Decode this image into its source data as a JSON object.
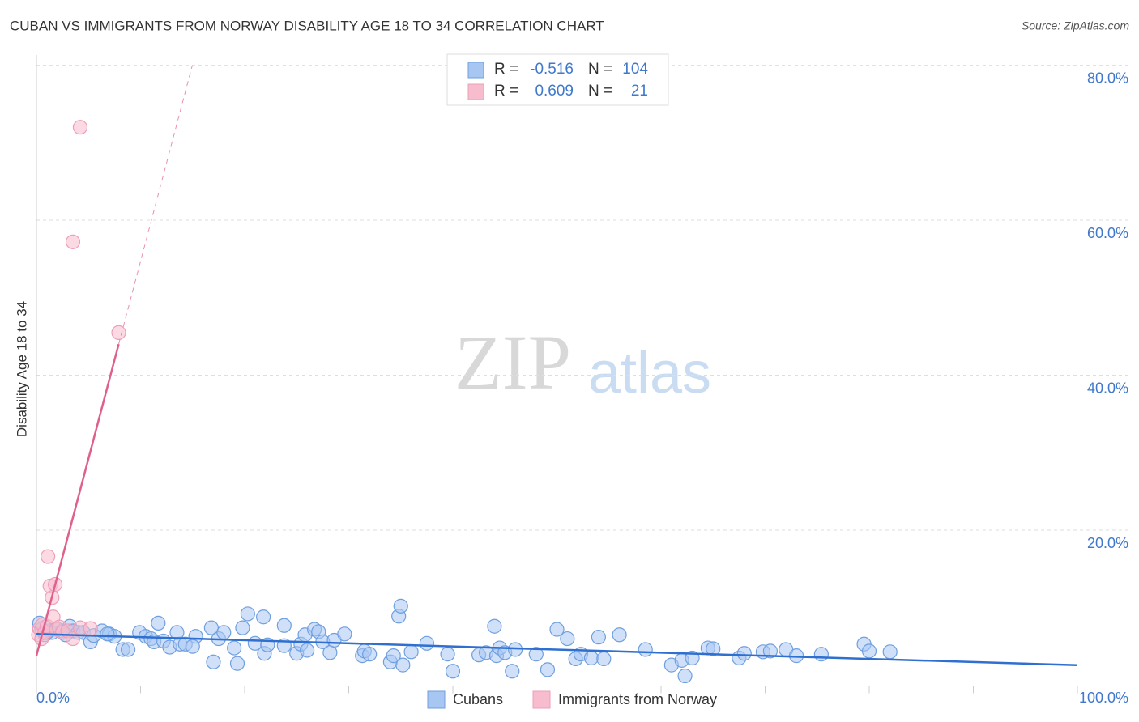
{
  "chart_data": {
    "type": "scatter",
    "title": "CUBAN VS IMMIGRANTS FROM NORWAY DISABILITY AGE 18 TO 34 CORRELATION CHART",
    "source": "Source: ZipAtlas.com",
    "watermark": {
      "left": "ZIP",
      "right": "atlas"
    },
    "y_label": "Disability Age 18 to 34",
    "xlim": [
      0,
      100
    ],
    "ylim": [
      0,
      81
    ],
    "xticks": [
      {
        "value": 0,
        "label": "0.0%"
      },
      {
        "value": 100,
        "label": "100.0%"
      }
    ],
    "xminor_ticks": [
      10,
      20,
      30,
      40,
      50,
      60,
      70,
      80,
      90
    ],
    "yticks": [
      {
        "value": 20,
        "label": "20.0%"
      },
      {
        "value": 40,
        "label": "40.0%"
      },
      {
        "value": 60,
        "label": "60.0%"
      },
      {
        "value": 80,
        "label": "80.0%"
      }
    ],
    "grid": true,
    "stat_labels": {
      "r": "R =",
      "n": "N ="
    },
    "series": [
      {
        "name": "Cubans",
        "color": "#6f9fdf",
        "fill": "#a8c6f2",
        "line_color": "#2f6fcf",
        "r": -0.516,
        "n": 104,
        "x": [
          0.3,
          0.5,
          0.8,
          1.2,
          1.5,
          2.0,
          2.5,
          3.2,
          3.5,
          4.0,
          4.5,
          5.2,
          5.5,
          6.3,
          7.0,
          7.5,
          8.3,
          8.8,
          9.9,
          10.5,
          11.0,
          11.3,
          11.7,
          12.2,
          12.8,
          13.8,
          13.5,
          14.3,
          15.3,
          16.8,
          17.0,
          17.5,
          18.0,
          19.0,
          19.3,
          19.8,
          20.3,
          21.0,
          21.8,
          21.9,
          22.2,
          23.8,
          23.8,
          25.0,
          25.4,
          25.8,
          26.7,
          27.1,
          27.5,
          28.2,
          28.6,
          29.6,
          31.3,
          31.5,
          32.0,
          34.0,
          34.3,
          34.8,
          35.0,
          35.2,
          36.0,
          37.5,
          40.0,
          42.5,
          43.2,
          44.0,
          44.2,
          44.5,
          45.0,
          45.7,
          46.0,
          48.0,
          49.1,
          50.0,
          51.0,
          51.8,
          52.3,
          53.3,
          54.0,
          54.5,
          56.0,
          58.5,
          61.0,
          62.0,
          62.3,
          63.0,
          64.5,
          65.0,
          67.5,
          68.0,
          69.8,
          70.5,
          72.0,
          73.0,
          75.4,
          79.5,
          80.0,
          82.0,
          1.0,
          2.8,
          6.8,
          15.0,
          26.0,
          39.5
        ],
        "y": [
          8.0,
          7.2,
          6.5,
          7.0,
          6.8,
          7.2,
          7.0,
          7.6,
          7.0,
          6.8,
          6.8,
          5.6,
          6.4,
          7.0,
          6.6,
          6.3,
          4.6,
          4.6,
          6.8,
          6.3,
          6.0,
          5.6,
          8.0,
          5.7,
          4.9,
          5.3,
          6.8,
          5.3,
          6.3,
          7.4,
          3.0,
          6.0,
          6.8,
          4.8,
          2.8,
          7.4,
          9.2,
          5.4,
          8.8,
          4.1,
          5.2,
          5.1,
          7.7,
          4.1,
          5.3,
          6.5,
          7.2,
          6.9,
          5.6,
          4.2,
          5.8,
          6.6,
          3.8,
          4.4,
          4.0,
          3.0,
          3.8,
          8.9,
          10.2,
          2.6,
          4.3,
          5.4,
          1.8,
          3.9,
          4.2,
          7.6,
          3.8,
          4.8,
          4.2,
          1.8,
          4.6,
          4.0,
          2.0,
          7.2,
          6.0,
          3.4,
          4.0,
          3.5,
          6.2,
          3.4,
          6.5,
          4.6,
          2.6,
          3.2,
          1.2,
          3.5,
          4.8,
          4.7,
          3.5,
          4.1,
          4.3,
          4.4,
          4.6,
          3.8,
          4.0,
          5.3,
          4.4,
          4.3,
          6.8,
          6.5,
          6.6,
          5.0,
          4.5,
          4.0
        ]
      },
      {
        "name": "Immigrants from Norway",
        "color": "#ee9fb8",
        "fill": "#f7bccd",
        "line_color": "#e0608c",
        "r": 0.609,
        "n": 21,
        "x": [
          0.2,
          0.3,
          0.5,
          0.6,
          0.8,
          1.0,
          1.1,
          1.3,
          1.5,
          1.6,
          1.8,
          1.9,
          2.2,
          2.5,
          3.0,
          3.5,
          4.2,
          5.2,
          3.5,
          4.2,
          7.9
        ],
        "y": [
          6.5,
          7.3,
          6.0,
          7.8,
          6.8,
          7.6,
          16.6,
          12.8,
          11.3,
          8.8,
          13.0,
          7.2,
          7.5,
          6.8,
          7.0,
          6.0,
          7.4,
          7.3,
          57.2,
          72.0,
          45.5
        ]
      }
    ]
  }
}
